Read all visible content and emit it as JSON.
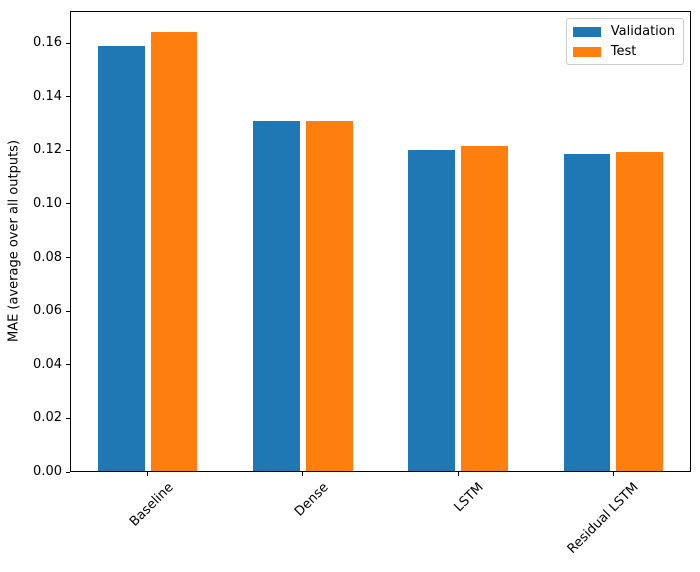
{
  "chart_data": {
    "type": "bar",
    "title": "",
    "xlabel": "",
    "ylabel": "MAE (average over all outputs)",
    "categories": [
      "Baseline",
      "Dense",
      "LSTM",
      "Residual LSTM"
    ],
    "series": [
      {
        "name": "Validation",
        "color": "#1f77b4",
        "values": [
          0.159,
          0.131,
          0.12,
          0.1185
        ]
      },
      {
        "name": "Test",
        "color": "#ff7f0e",
        "values": [
          0.164,
          0.131,
          0.1215,
          0.1195
        ]
      }
    ],
    "ylim": [
      0,
      0.172
    ],
    "yticks": [
      0.0,
      0.02,
      0.04,
      0.06,
      0.08,
      0.1,
      0.12,
      0.14,
      0.16
    ],
    "ytick_decimals": 2,
    "xtick_rotation_deg": 45,
    "grid": false,
    "legend_position": "upper-right",
    "bar_width_fraction": 0.3,
    "bar_offset_fraction": 0.17,
    "axis_color": "#000000",
    "background_color": "#ffffff"
  }
}
